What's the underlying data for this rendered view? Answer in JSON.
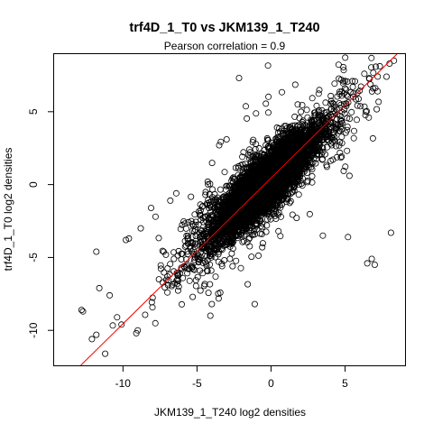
{
  "chart_data": {
    "type": "scatter",
    "title": "trf4D_1_T0 vs JKM139_1_T240",
    "subtitle": "Pearson correlation =  0.9",
    "xlabel": "JKM139_1_T240 log2 densities",
    "ylabel": "trf4D_1_T0 log2 densities",
    "xlim": [
      -14.65,
      9.05
    ],
    "ylim": [
      -12.4,
      8.95
    ],
    "x_ticks": [
      -10,
      -5,
      0,
      5
    ],
    "y_ticks": [
      -10,
      -5,
      0,
      5
    ],
    "grid": false,
    "point_style": "open-circle",
    "point_color": "#000000",
    "fit_line": {
      "slope": 1.0,
      "intercept": 0.45,
      "color": "#ff0000"
    },
    "estimated_point_count": 6000,
    "notable_points": [
      {
        "x": 8.3,
        "y": 8.5
      },
      {
        "x": 8.0,
        "y": 8.3
      },
      {
        "x": 7.8,
        "y": 7.4
      },
      {
        "x": 7.2,
        "y": 6.4
      },
      {
        "x": 6.9,
        "y": 6.6
      },
      {
        "x": 6.3,
        "y": 7.6
      },
      {
        "x": 5.5,
        "y": 7.1
      },
      {
        "x": 5.0,
        "y": 6.6
      },
      {
        "x": 6.6,
        "y": 4.6
      },
      {
        "x": 6.4,
        "y": 5.0
      },
      {
        "x": 5.3,
        "y": 0.6
      },
      {
        "x": 8.1,
        "y": -3.3
      },
      {
        "x": 5.2,
        "y": -3.6
      },
      {
        "x": 6.5,
        "y": -5.4
      },
      {
        "x": 7.0,
        "y": -5.5
      },
      {
        "x": 6.8,
        "y": -5.1
      },
      {
        "x": -12.8,
        "y": -8.6
      },
      {
        "x": -12.7,
        "y": -8.7
      },
      {
        "x": -12.1,
        "y": -10.6
      },
      {
        "x": -11.2,
        "y": -11.6
      },
      {
        "x": -11.8,
        "y": -10.3
      },
      {
        "x": -11.6,
        "y": -7.1
      },
      {
        "x": -10.9,
        "y": -7.6
      },
      {
        "x": -10.4,
        "y": -9.1
      },
      {
        "x": -10.1,
        "y": -9.6
      },
      {
        "x": -11.8,
        "y": -4.6
      },
      {
        "x": -9.6,
        "y": -3.7
      },
      {
        "x": -9.8,
        "y": -3.8
      },
      {
        "x": -9.0,
        "y": -10.0
      },
      {
        "x": -9.1,
        "y": -10.2
      },
      {
        "x": -8.8,
        "y": -3.0
      },
      {
        "x": -8.1,
        "y": -1.6
      },
      {
        "x": -7.8,
        "y": -2.2
      },
      {
        "x": -6.8,
        "y": -1.1
      },
      {
        "x": -6.4,
        "y": -0.6
      },
      {
        "x": -3.5,
        "y": 2.7
      },
      {
        "x": -3.0,
        "y": 3.1
      },
      {
        "x": -1.1,
        "y": -8.2
      },
      {
        "x": -2.6,
        "y": -5.6
      },
      {
        "x": 0.5,
        "y": -3.2
      },
      {
        "x": 3.5,
        "y": -3.5
      },
      {
        "x": -5.5,
        "y": -6.6
      },
      {
        "x": -4.0,
        "y": -8.2
      },
      {
        "x": -7.0,
        "y": -7.4
      }
    ]
  }
}
